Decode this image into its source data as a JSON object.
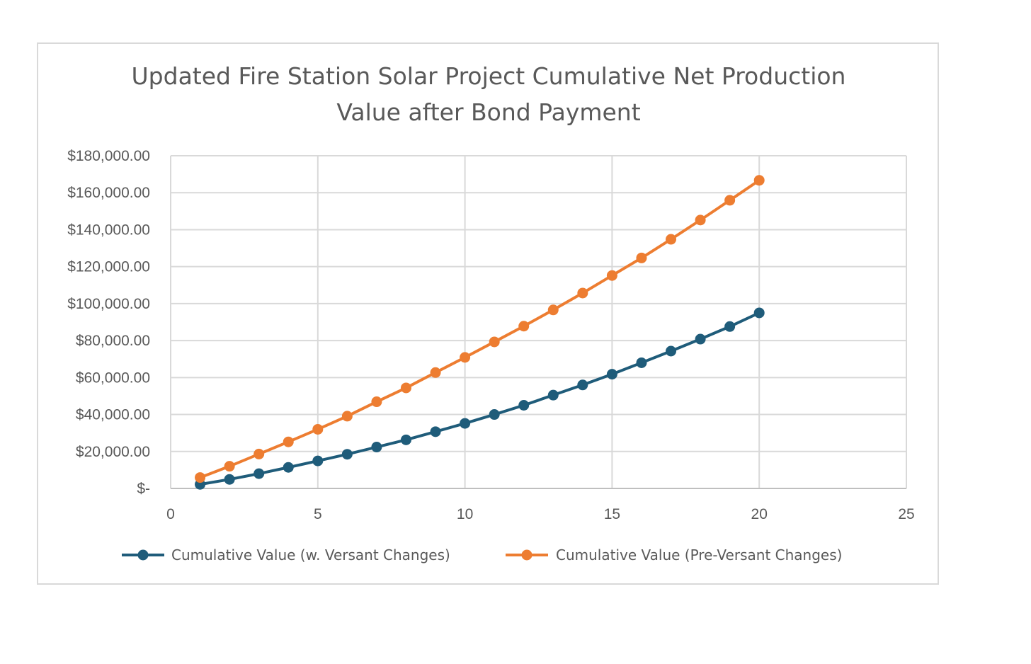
{
  "chart_data": {
    "type": "line",
    "title_lines": [
      "Updated Fire Station Solar Project Cumulative Net Production",
      "Value after Bond Payment"
    ],
    "xlabel": "",
    "ylabel": "",
    "xlim": [
      0,
      25
    ],
    "ylim": [
      0,
      180000
    ],
    "x_ticks": [
      "0",
      "5",
      "10",
      "15",
      "20",
      "25"
    ],
    "x_tick_values": [
      0,
      5,
      10,
      15,
      20,
      25
    ],
    "y_ticks": [
      "$-",
      "$20,000.00",
      "$40,000.00",
      "$60,000.00",
      "$80,000.00",
      "$100,000.00",
      "$120,000.00",
      "$140,000.00",
      "$160,000.00",
      "$180,000.00"
    ],
    "y_tick_values": [
      0,
      20000,
      40000,
      60000,
      80000,
      100000,
      120000,
      140000,
      160000,
      180000
    ],
    "grid": true,
    "legend_position": "bottom",
    "x": [
      1,
      2,
      3,
      4,
      5,
      6,
      7,
      8,
      9,
      10,
      11,
      12,
      13,
      14,
      15,
      16,
      17,
      18,
      19,
      20
    ],
    "series": [
      {
        "name": "Cumulative Value (w. Versant Changes)",
        "color": "#1f5c7a",
        "values": [
          2200,
          4900,
          8000,
          11400,
          14900,
          18500,
          22400,
          26300,
          30700,
          35200,
          40000,
          45000,
          50500,
          56000,
          61800,
          68000,
          74300,
          80800,
          87600,
          95000
        ]
      },
      {
        "name": "Cumulative Value (Pre-Versant Changes)",
        "color": "#ed7d31",
        "values": [
          5900,
          12000,
          18600,
          25200,
          32000,
          39100,
          46900,
          54400,
          62700,
          70900,
          79300,
          87800,
          96600,
          105700,
          115200,
          124700,
          134800,
          145200,
          155900,
          166700
        ]
      }
    ]
  }
}
